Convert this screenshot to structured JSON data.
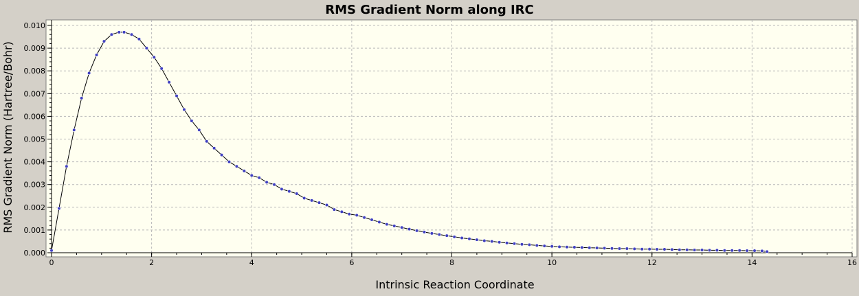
{
  "chart_data": {
    "type": "line",
    "title": "RMS Gradient Norm along IRC",
    "xlabel": "Intrinsic Reaction Coordinate",
    "ylabel": "RMS Gradient Norm (Hartree/Bohr)",
    "xlim": [
      0,
      16
    ],
    "ylim": [
      0,
      0.01
    ],
    "x_ticks": [
      "0",
      "2",
      "4",
      "6",
      "8",
      "10",
      "12",
      "14",
      "16"
    ],
    "y_ticks": [
      "0.000",
      "0.001",
      "0.002",
      "0.003",
      "0.004",
      "0.005",
      "0.006",
      "0.007",
      "0.008",
      "0.009",
      "0.010"
    ],
    "grid": true,
    "line_color": "#000000",
    "marker_color": "#4040c0",
    "plot_background": "#fffff0",
    "series": [
      {
        "x": [
          0.0,
          0.15,
          0.3,
          0.45,
          0.6,
          0.75,
          0.9,
          1.05,
          1.2,
          1.35,
          1.45,
          1.6,
          1.75,
          1.9,
          2.05,
          2.2,
          2.35,
          2.5,
          2.65,
          2.8,
          2.95,
          3.1,
          3.25,
          3.4,
          3.55,
          3.7,
          3.85,
          4.0,
          4.15,
          4.3,
          4.45,
          4.6,
          4.75,
          4.9,
          5.05,
          5.2,
          5.35,
          5.5,
          5.65,
          5.8,
          5.95,
          6.1,
          6.25,
          6.4,
          6.55,
          6.7,
          6.85,
          7.0,
          7.15,
          7.3,
          7.45,
          7.6,
          7.75,
          7.9,
          8.05,
          8.2,
          8.35,
          8.5,
          8.65,
          8.8,
          8.95,
          9.1,
          9.25,
          9.4,
          9.55,
          9.7,
          9.85,
          10.0,
          10.15,
          10.3,
          10.45,
          10.6,
          10.75,
          10.9,
          11.05,
          11.2,
          11.35,
          11.5,
          11.65,
          11.8,
          11.95,
          12.1,
          12.25,
          12.4,
          12.55,
          12.7,
          12.85,
          13.0,
          13.15,
          13.3,
          13.45,
          13.6,
          13.75,
          13.9,
          14.05,
          14.2,
          14.3
        ],
        "y": [
          0.0001,
          0.00195,
          0.0038,
          0.0054,
          0.0068,
          0.0079,
          0.0087,
          0.0093,
          0.0096,
          0.0097,
          0.0097,
          0.0096,
          0.0094,
          0.009,
          0.0086,
          0.0081,
          0.0075,
          0.0069,
          0.0063,
          0.0058,
          0.0054,
          0.0049,
          0.0046,
          0.0043,
          0.004,
          0.0038,
          0.0036,
          0.0034,
          0.0033,
          0.0031,
          0.003,
          0.0028,
          0.0027,
          0.0026,
          0.0024,
          0.0023,
          0.0022,
          0.0021,
          0.0019,
          0.0018,
          0.0017,
          0.00165,
          0.00155,
          0.00145,
          0.00135,
          0.00125,
          0.00118,
          0.00111,
          0.00104,
          0.00097,
          0.00091,
          0.00085,
          0.0008,
          0.00075,
          0.0007,
          0.00065,
          0.00061,
          0.00057,
          0.00053,
          0.0005,
          0.00046,
          0.00043,
          0.0004,
          0.00037,
          0.00035,
          0.00032,
          0.0003,
          0.00028,
          0.00026,
          0.00025,
          0.00024,
          0.00023,
          0.00022,
          0.00021,
          0.0002,
          0.00019,
          0.00018,
          0.00018,
          0.00017,
          0.00016,
          0.00016,
          0.00015,
          0.00015,
          0.00014,
          0.00013,
          0.00013,
          0.00012,
          0.00012,
          0.00011,
          0.00011,
          0.0001,
          0.0001,
          0.0001,
          9e-05,
          9e-05,
          8e-05,
          5e-05
        ]
      }
    ]
  }
}
